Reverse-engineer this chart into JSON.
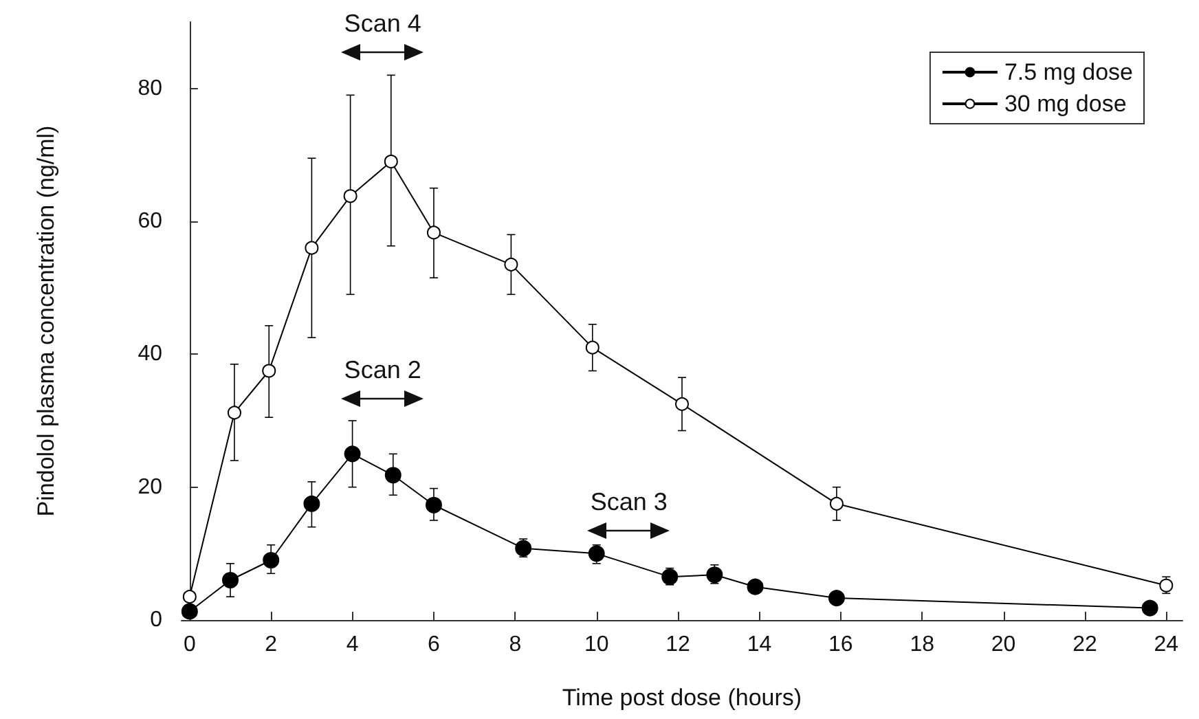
{
  "chart_data": {
    "type": "line",
    "xlabel": "Time post dose (hours)",
    "ylabel": "Pindolol plasma concentration (ng/ml)",
    "xlim": [
      -0.2,
      24.4
    ],
    "ylim": [
      0,
      90
    ],
    "xticks": [
      0,
      2,
      4,
      6,
      8,
      10,
      12,
      14,
      16,
      18,
      20,
      22,
      24
    ],
    "yticks": [
      0,
      20,
      40,
      60,
      80
    ],
    "grid": false,
    "legend": "top right",
    "marker": "circle",
    "line_style": "solid",
    "series": [
      {
        "name": "7.5 mg dose",
        "color": "#000000",
        "x": [
          0,
          1,
          2,
          3,
          4,
          5,
          6,
          8.2,
          10,
          11.8,
          12.9,
          13.9,
          15.9,
          23.6
        ],
        "values": [
          1.3,
          6,
          9,
          17.5,
          25,
          21.8,
          17.3,
          10.8,
          10,
          6.5,
          6.8,
          5,
          3.3,
          1.8
        ],
        "errors": [
          null,
          [
            3.5,
            8.5
          ],
          [
            7,
            11.3
          ],
          [
            14,
            20.8
          ],
          [
            20,
            30
          ],
          [
            18.8,
            25
          ],
          [
            15,
            19.8
          ],
          [
            9.5,
            12.2
          ],
          [
            8.5,
            11.3
          ],
          [
            5.3,
            7.8
          ],
          [
            5.5,
            8.3
          ],
          [
            4,
            6
          ],
          null,
          null
        ]
      },
      {
        "name": "30 mg dose",
        "color": "#000000",
        "x": [
          0,
          1.1,
          1.95,
          3,
          3.95,
          4.95,
          6,
          7.9,
          9.9,
          12.1,
          15.9,
          24
        ],
        "values": [
          3.5,
          31.2,
          37.5,
          56,
          63.8,
          69,
          58.3,
          53.5,
          41,
          32.5,
          17.5,
          5.2
        ],
        "errors": [
          null,
          [
            24,
            38.5
          ],
          [
            30.5,
            44.3
          ],
          [
            42.5,
            69.5
          ],
          [
            49,
            79
          ],
          [
            56.3,
            82
          ],
          [
            51.5,
            65
          ],
          [
            49,
            58
          ],
          [
            37.5,
            44.5
          ],
          [
            28.5,
            36.5
          ],
          [
            15,
            20
          ],
          [
            4,
            6.5
          ]
        ]
      }
    ],
    "annotations": [
      "Scan 4",
      "Scan 2",
      "Scan 3"
    ]
  }
}
